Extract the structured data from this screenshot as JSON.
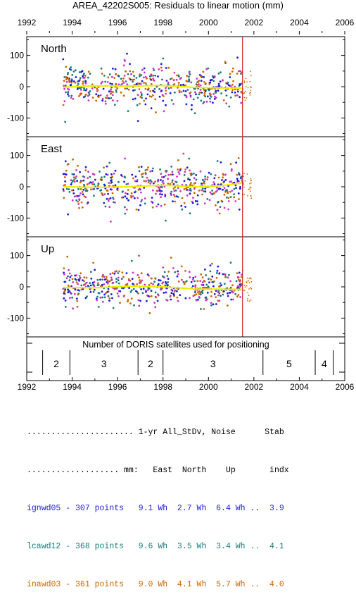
{
  "chart_data": {
    "type": "scatter",
    "title": "AREA_42202S005: Residuals to linear motion (mm)",
    "xlim": [
      1992,
      2006
    ],
    "x_ticks": [
      "1992",
      "1994",
      "1996",
      "1998",
      "2000",
      "2002",
      "2004",
      "2006"
    ],
    "ylim": [
      -160,
      160
    ],
    "y_ticks": [
      "100",
      "0",
      "-100"
    ],
    "event_line_year": 2001.5,
    "event_line_color": "#cc2222",
    "trend_color": "#eeee00",
    "series_colors": {
      "ignwd05": "#1a1ad8",
      "lcawd12": "#1a7a7a",
      "inawd03": "#cc6600",
      "magenta": "#cc33cc"
    },
    "panels": [
      {
        "label": "North",
        "data_start": 1993.6,
        "data_end": 2001.9,
        "spread": 38,
        "trend": [
          [
            1993.6,
            -2
          ],
          [
            1995.0,
            3
          ],
          [
            1996.5,
            2
          ],
          [
            1998.0,
            4
          ],
          [
            1999.5,
            -3
          ],
          [
            2001.5,
            -5
          ]
        ]
      },
      {
        "label": "East",
        "data_start": 1993.6,
        "data_end": 2001.9,
        "spread": 45,
        "trend": [
          [
            1993.6,
            0
          ],
          [
            1995.0,
            -2
          ],
          [
            1996.5,
            0
          ],
          [
            1998.0,
            5
          ],
          [
            1999.5,
            0
          ],
          [
            2000.5,
            3
          ],
          [
            2001.5,
            12
          ]
        ]
      },
      {
        "label": "Up",
        "data_start": 1993.6,
        "data_end": 2001.9,
        "spread": 35,
        "trend": [
          [
            1993.6,
            -2
          ],
          [
            1995.0,
            -3
          ],
          [
            1996.5,
            2
          ],
          [
            1998.0,
            0
          ],
          [
            1999.5,
            -7
          ],
          [
            2001.5,
            -8
          ]
        ]
      }
    ],
    "satellites": {
      "title": "Number of DORIS satellites used for positioning",
      "segments": [
        {
          "start": 1992.7,
          "end": 1993.9,
          "count": "2"
        },
        {
          "start": 1993.9,
          "end": 1996.9,
          "count": "3"
        },
        {
          "start": 1996.9,
          "end": 1998.0,
          "count": "2"
        },
        {
          "start": 1998.0,
          "end": 2002.4,
          "count": "3"
        },
        {
          "start": 2002.4,
          "end": 2004.7,
          "count": "5"
        },
        {
          "start": 2004.7,
          "end": 2005.5,
          "count": "4"
        }
      ]
    }
  },
  "table": {
    "header1": "...................... 1-yr All_StDv, Noise      Stab",
    "header2": "................... mm:   East  North    Up       indx",
    "rows": [
      {
        "text": "ignwd05 - 307 points   9.1 Wh  2.7 Wh  6.4 Wh ..  3.9",
        "color": "#1a1ad8"
      },
      {
        "text": "lcawd12 - 368 points   9.6 Wh  3.5 Wh  3.4 Wh ..  4.1",
        "color": "#1a7a7a"
      },
      {
        "text": "inawd03 - 361 points   9.0 Wh  4.1 Wh  5.7 Wh ..  4.0",
        "color": "#cc6600"
      }
    ]
  }
}
